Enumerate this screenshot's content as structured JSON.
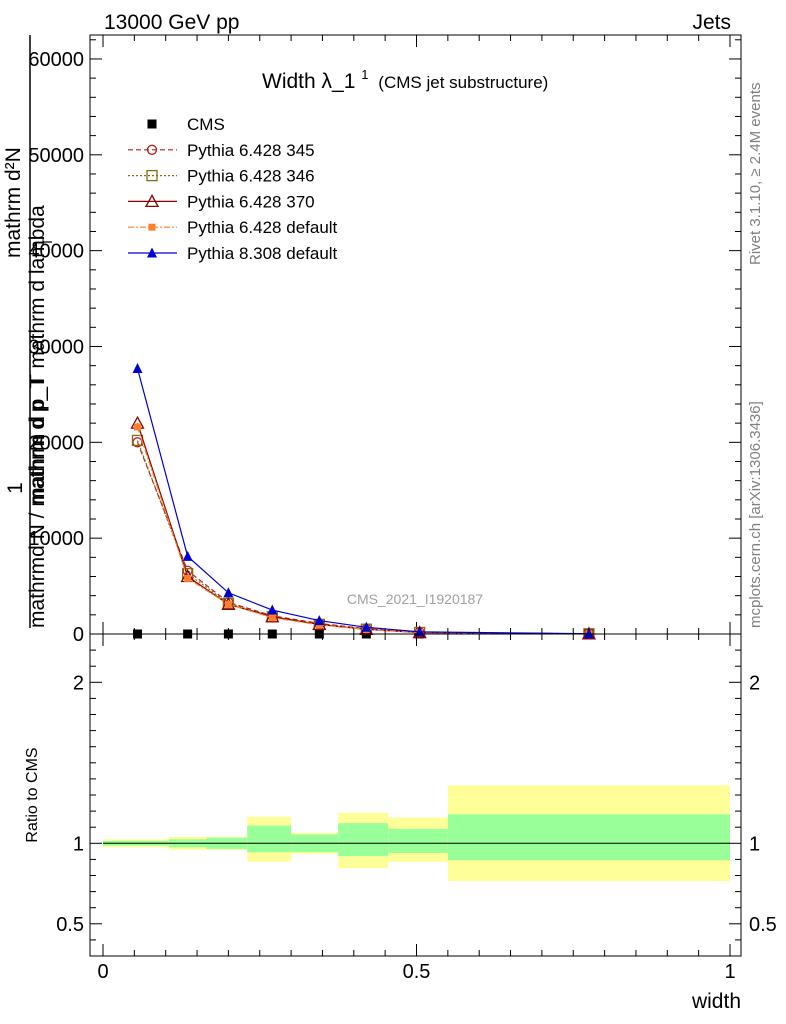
{
  "header": {
    "left": "13000 GeV pp",
    "right": "Jets"
  },
  "side": {
    "rivet": "Rivet 3.1.10, ≥ 2.4M events",
    "mcplots": "mcplots.cern.ch [arXiv:1306.3436]"
  },
  "colors": {
    "cms": "#000000",
    "p345": "#b22222",
    "p346": "#8b6914",
    "p370": "#8b0000",
    "pdef": "#ff7f2a",
    "p8": "#0000d0",
    "band_outer": "#ffff99",
    "band_inner": "#99ff99"
  },
  "chart_data": [
    {
      "type": "line",
      "title_main": "Width λ_1",
      "title_sup": "1",
      "title_sub": "(CMS jet substructure)",
      "watermark": "CMS_2021_I1920187",
      "ylabel_top": "1",
      "ylabel_num": "mathrm d²N",
      "ylabel_num2": "mathrm d p_T mathrm d lambda",
      "ylabel_den": "mathrmd N / mathrm d p_T",
      "ylabel_T": "T",
      "xlim": [
        0,
        1
      ],
      "ylim": [
        0,
        62500
      ],
      "yticks": [
        0,
        10000,
        20000,
        30000,
        40000,
        50000,
        60000
      ],
      "ytick_labels": [
        "0",
        "10000",
        "20000",
        "30000",
        "40000",
        "50000",
        "60000"
      ],
      "x": [
        0.055,
        0.135,
        0.2,
        0.27,
        0.345,
        0.42,
        0.505,
        0.775
      ],
      "series": [
        {
          "name": "CMS",
          "key": "cms",
          "marker": "square-filled",
          "line": "none",
          "values": [
            0,
            0,
            0,
            0,
            0,
            0,
            0,
            0
          ]
        },
        {
          "name": "Pythia 6.428 345",
          "key": "p345",
          "marker": "circle-open",
          "line": "dashed",
          "values": [
            20000,
            6600,
            3300,
            1900,
            1100,
            550,
            180,
            20
          ]
        },
        {
          "name": "Pythia 6.428 346",
          "key": "p346",
          "marker": "square-open",
          "line": "dotted",
          "values": [
            20200,
            6300,
            3200,
            1800,
            1000,
            500,
            160,
            18
          ]
        },
        {
          "name": "Pythia 6.428 370",
          "key": "p370",
          "marker": "triangle-open",
          "line": "solid",
          "values": [
            22000,
            6000,
            3100,
            1800,
            1000,
            480,
            150,
            15
          ]
        },
        {
          "name": "Pythia 6.428 default",
          "key": "pdef",
          "marker": "square-filled-small",
          "line": "dashdot",
          "values": [
            21600,
            5800,
            3100,
            1700,
            950,
            470,
            150,
            15
          ]
        },
        {
          "name": "Pythia 8.308 default",
          "key": "p8",
          "marker": "triangle-filled",
          "line": "solid",
          "values": [
            27700,
            8100,
            4300,
            2500,
            1400,
            700,
            220,
            25
          ]
        }
      ]
    },
    {
      "type": "area",
      "ylabel": "Ratio to CMS",
      "xlabel": "width",
      "xlim": [
        0,
        1
      ],
      "ylim": [
        0.3,
        2.3
      ],
      "yticks": [
        0.5,
        1,
        2
      ],
      "ytick_labels": [
        "0.5",
        "1",
        "2"
      ],
      "xticks": [
        0,
        0.5,
        1
      ],
      "xtick_labels": [
        "0",
        "0.5",
        "1"
      ],
      "bins": [
        {
          "x0": 0.0,
          "x1": 0.105,
          "outer": [
            0.975,
            1.025
          ],
          "inner": [
            0.985,
            1.015
          ]
        },
        {
          "x0": 0.105,
          "x1": 0.165,
          "outer": [
            0.96,
            1.04
          ],
          "inner": [
            0.975,
            1.025
          ]
        },
        {
          "x0": 0.165,
          "x1": 0.23,
          "outer": [
            0.96,
            1.04
          ],
          "inner": [
            0.965,
            1.035
          ]
        },
        {
          "x0": 0.23,
          "x1": 0.3,
          "outer": [
            0.885,
            1.165
          ],
          "inner": [
            0.945,
            1.11
          ]
        },
        {
          "x0": 0.3,
          "x1": 0.375,
          "outer": [
            0.935,
            1.065
          ],
          "inner": [
            0.945,
            1.055
          ]
        },
        {
          "x0": 0.375,
          "x1": 0.455,
          "outer": [
            0.845,
            1.19
          ],
          "inner": [
            0.92,
            1.125
          ]
        },
        {
          "x0": 0.455,
          "x1": 0.55,
          "outer": [
            0.885,
            1.16
          ],
          "inner": [
            0.94,
            1.09
          ]
        },
        {
          "x0": 0.55,
          "x1": 1.0,
          "outer": [
            0.765,
            1.36
          ],
          "inner": [
            0.895,
            1.18
          ]
        }
      ]
    }
  ]
}
